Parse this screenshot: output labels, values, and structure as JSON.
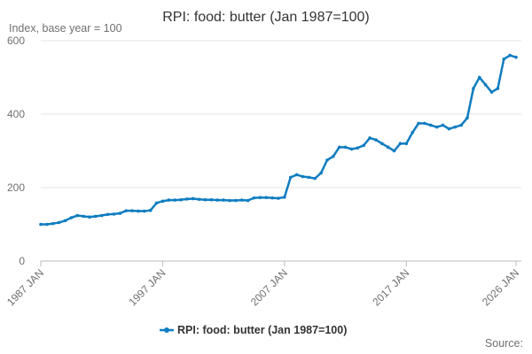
{
  "chart_data": {
    "type": "line",
    "title": "RPI: food: butter (Jan 1987=100)",
    "subtitle": "Index, base year = 100",
    "source": "Source:",
    "x": [
      "1987 JAN",
      "1987 JUL",
      "1988 JAN",
      "1988 JUL",
      "1989 JAN",
      "1989 JUL",
      "1990 JAN",
      "1990 JUL",
      "1991 JAN",
      "1991 JUL",
      "1992 JAN",
      "1992 JUL",
      "1993 JAN",
      "1993 JUL",
      "1994 JAN",
      "1994 JUL",
      "1995 JAN",
      "1995 JUL",
      "1996 JAN",
      "1996 JUL",
      "1997 JAN",
      "1997 JUL",
      "1998 JAN",
      "1998 JUL",
      "1999 JAN",
      "1999 JUL",
      "2000 JAN",
      "2000 JUL",
      "2001 JAN",
      "2001 JUL",
      "2002 JAN",
      "2002 JUL",
      "2003 JAN",
      "2003 JUL",
      "2004 JAN",
      "2004 JUL",
      "2005 JAN",
      "2005 JUL",
      "2006 JAN",
      "2006 JUL",
      "2007 JAN",
      "2007 JUL",
      "2008 JAN",
      "2008 JUL",
      "2009 JAN",
      "2009 JUL",
      "2010 JAN",
      "2010 JUL",
      "2011 JAN",
      "2011 JUL",
      "2012 JAN",
      "2012 JUL",
      "2013 JAN",
      "2013 JUL",
      "2014 JAN",
      "2014 JUL",
      "2015 JAN",
      "2015 JUL",
      "2016 JAN",
      "2016 JUL",
      "2017 JAN",
      "2017 JUL",
      "2018 JAN",
      "2018 JUL",
      "2019 JAN",
      "2019 JUL",
      "2020 JAN",
      "2020 JUL",
      "2021 JAN",
      "2021 JUL",
      "2022 JAN",
      "2022 JUL",
      "2023 JAN",
      "2023 JUL",
      "2024 JAN",
      "2024 JUL",
      "2025 JAN",
      "2025 JUL",
      "2026 JAN"
    ],
    "series": [
      {
        "name": "RPI: food: butter (Jan 1987=100)",
        "color": "#0f7dc0",
        "values": [
          100,
          100,
          102,
          105,
          110,
          118,
          124,
          122,
          120,
          122,
          124,
          127,
          128,
          130,
          137,
          137,
          136,
          136,
          138,
          158,
          163,
          166,
          166,
          167,
          169,
          170,
          168,
          167,
          167,
          166,
          166,
          165,
          165,
          166,
          165,
          172,
          173,
          173,
          172,
          171,
          174,
          228,
          235,
          230,
          228,
          225,
          240,
          275,
          285,
          310,
          310,
          305,
          308,
          315,
          335,
          330,
          320,
          310,
          300,
          320,
          320,
          350,
          375,
          375,
          370,
          365,
          370,
          360,
          365,
          370,
          390,
          470,
          500,
          480,
          460,
          470,
          550,
          560,
          555
        ]
      }
    ],
    "xlim": [
      "1987 JAN",
      "2026 JAN"
    ],
    "xticks": [
      "1987 JAN",
      "1997 JAN",
      "2007 JAN",
      "2017 JAN",
      "2026 JAN"
    ],
    "ylim": [
      0,
      600
    ],
    "yticks": [
      0,
      200,
      400,
      600
    ],
    "grid": true
  }
}
